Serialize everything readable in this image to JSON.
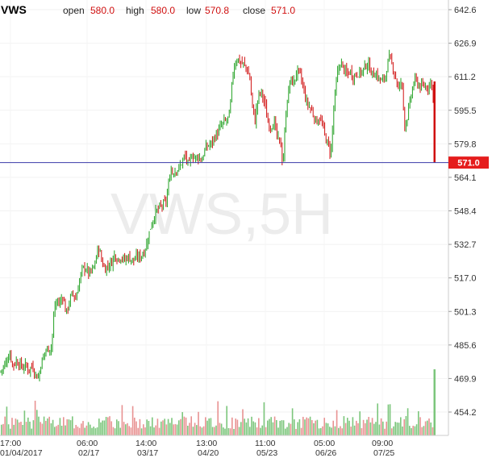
{
  "header": {
    "symbol": "VWS",
    "open_label": "open",
    "open_value": "580.0",
    "high_label": "high",
    "high_value": "580.0",
    "low_label": "low",
    "low_value": "570.8",
    "close_label": "close",
    "close_value": "571.0"
  },
  "watermark": "VWS,5H",
  "last_price": "571.0",
  "colors": {
    "up": "#22a022",
    "down": "#d01010",
    "line": "#3a3aa8",
    "volume_up": "#7cc67c",
    "volume_down": "#e89292"
  },
  "chart_data": {
    "type": "candlestick",
    "ylim": [
      450,
      650
    ],
    "y_ticks": [
      "642.6",
      "626.9",
      "611.2",
      "595.5",
      "579.8",
      "564.1",
      "548.4",
      "532.7",
      "517.0",
      "501.3",
      "485.6",
      "469.9",
      "454.2"
    ],
    "x_ticks": [
      {
        "time": "17:00",
        "date": "01/04/2017"
      },
      {
        "time": "06:00",
        "date": "02/17"
      },
      {
        "time": "14:00",
        "date": "03/17"
      },
      {
        "time": "13:00",
        "date": "04/20"
      },
      {
        "time": "11:00",
        "date": "05/23"
      },
      {
        "time": "05:00",
        "date": "06/26"
      },
      {
        "time": "09:00",
        "date": "07/25"
      }
    ],
    "last_price_line": 571.0,
    "price_path": [
      [
        0,
        473
      ],
      [
        4,
        475
      ],
      [
        8,
        478
      ],
      [
        12,
        482
      ],
      [
        16,
        476
      ],
      [
        20,
        478
      ],
      [
        24,
        477
      ],
      [
        28,
        475
      ],
      [
        32,
        476
      ],
      [
        36,
        474
      ],
      [
        40,
        476
      ],
      [
        44,
        472
      ],
      [
        48,
        470
      ],
      [
        50,
        476
      ],
      [
        53,
        479
      ],
      [
        56,
        483
      ],
      [
        60,
        484
      ],
      [
        64,
        485
      ],
      [
        66,
        496
      ],
      [
        68,
        504
      ],
      [
        71,
        506
      ],
      [
        74,
        505
      ],
      [
        78,
        509
      ],
      [
        82,
        500
      ],
      [
        86,
        506
      ],
      [
        90,
        510
      ],
      [
        94,
        507
      ],
      [
        98,
        515
      ],
      [
        102,
        521
      ],
      [
        106,
        522
      ],
      [
        110,
        519
      ],
      [
        114,
        520
      ],
      [
        118,
        524
      ],
      [
        122,
        532
      ],
      [
        126,
        525
      ],
      [
        130,
        521
      ],
      [
        134,
        523
      ],
      [
        138,
        524
      ],
      [
        142,
        528
      ],
      [
        146,
        526
      ],
      [
        150,
        527
      ],
      [
        154,
        525
      ],
      [
        158,
        527
      ],
      [
        162,
        526
      ],
      [
        166,
        525
      ],
      [
        170,
        527
      ],
      [
        174,
        527
      ],
      [
        178,
        529
      ],
      [
        182,
        533
      ],
      [
        186,
        540
      ],
      [
        190,
        545
      ],
      [
        194,
        548
      ],
      [
        198,
        550
      ],
      [
        202,
        551
      ],
      [
        206,
        553
      ],
      [
        210,
        563
      ],
      [
        212,
        569
      ],
      [
        214,
        566
      ],
      [
        218,
        568
      ],
      [
        222,
        568
      ],
      [
        226,
        572
      ],
      [
        230,
        574
      ],
      [
        234,
        569
      ],
      [
        238,
        575
      ],
      [
        242,
        573
      ],
      [
        246,
        574
      ],
      [
        250,
        572
      ],
      [
        254,
        577
      ],
      [
        258,
        579
      ],
      [
        262,
        580
      ],
      [
        266,
        583
      ],
      [
        270,
        585
      ],
      [
        274,
        588
      ],
      [
        278,
        590
      ],
      [
        282,
        591
      ],
      [
        284,
        593
      ],
      [
        286,
        599
      ],
      [
        288,
        610
      ],
      [
        290,
        616
      ],
      [
        294,
        620
      ],
      [
        298,
        618
      ],
      [
        302,
        617
      ],
      [
        306,
        615
      ],
      [
        310,
        610
      ],
      [
        312,
        600
      ],
      [
        316,
        590
      ],
      [
        320,
        602
      ],
      [
        324,
        604
      ],
      [
        328,
        599
      ],
      [
        332,
        590
      ],
      [
        336,
        588
      ],
      [
        340,
        590
      ],
      [
        344,
        582
      ],
      [
        348,
        580
      ],
      [
        350,
        572
      ],
      [
        352,
        575
      ],
      [
        354,
        593
      ],
      [
        356,
        600
      ],
      [
        360,
        610
      ],
      [
        364,
        608
      ],
      [
        368,
        614
      ],
      [
        372,
        612
      ],
      [
        376,
        606
      ],
      [
        380,
        599
      ],
      [
        384,
        597
      ],
      [
        388,
        594
      ],
      [
        392,
        590
      ],
      [
        396,
        592
      ],
      [
        400,
        588
      ],
      [
        404,
        582
      ],
      [
        408,
        578
      ],
      [
        410,
        575
      ],
      [
        412,
        585
      ],
      [
        414,
        598
      ],
      [
        416,
        604
      ],
      [
        418,
        612
      ],
      [
        422,
        618
      ],
      [
        426,
        615
      ],
      [
        430,
        612
      ],
      [
        434,
        614
      ],
      [
        438,
        611
      ],
      [
        442,
        613
      ],
      [
        446,
        613
      ],
      [
        450,
        614
      ],
      [
        454,
        617
      ],
      [
        458,
        616
      ],
      [
        462,
        612
      ],
      [
        466,
        613
      ],
      [
        470,
        610
      ],
      [
        474,
        609
      ],
      [
        478,
        612
      ],
      [
        482,
        620
      ],
      [
        486,
        617
      ],
      [
        490,
        612
      ],
      [
        494,
        605
      ],
      [
        498,
        610
      ],
      [
        500,
        598
      ],
      [
        502,
        588
      ],
      [
        506,
        594
      ],
      [
        510,
        603
      ],
      [
        514,
        610
      ],
      [
        518,
        608
      ],
      [
        522,
        606
      ],
      [
        526,
        607
      ],
      [
        530,
        606
      ],
      [
        533,
        609
      ],
      [
        536,
        608
      ],
      [
        538,
        592
      ],
      [
        540,
        571
      ]
    ]
  }
}
